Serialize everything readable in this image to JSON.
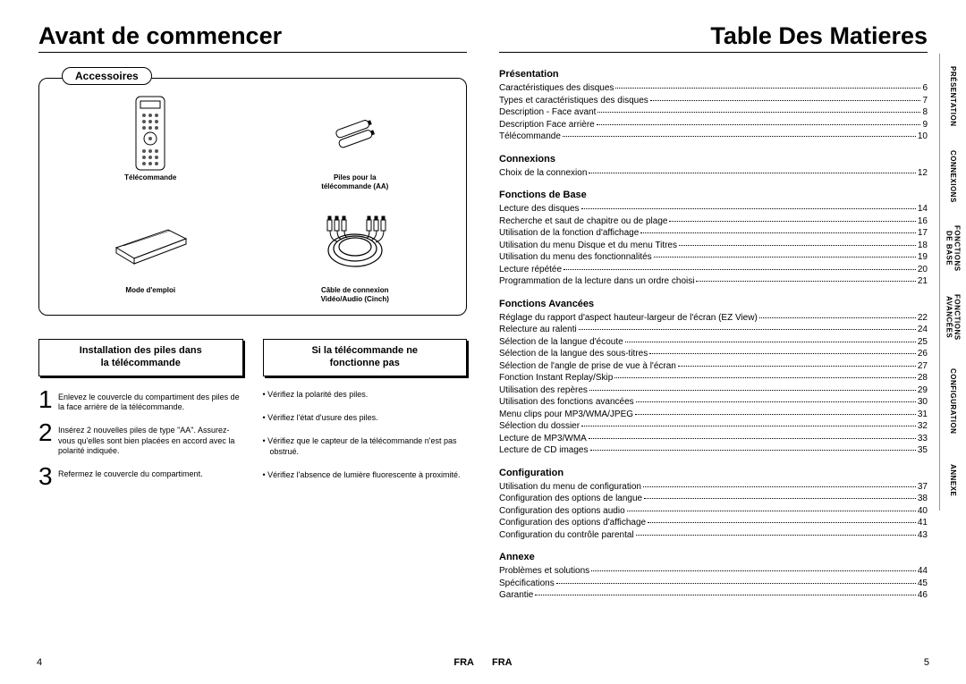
{
  "left": {
    "title": "Avant de commencer",
    "accessories_label": "Accessoires",
    "accessories": [
      {
        "caption": "Télécommande"
      },
      {
        "caption": "Piles pour la\ntélécommande (AA)"
      },
      {
        "caption": "Mode d'emploi"
      },
      {
        "caption": "Câble de connexion\nVidéo/Audio (Cinch)"
      }
    ],
    "inst1_title": "Installation des piles dans\nla télécommande",
    "inst2_title": "Si la télécommande ne\nfonctionne pas",
    "steps": [
      "Enlevez le couvercle du compartiment des piles de la face arrière de la télécommande.",
      "Insérez 2 nouvelles piles de type \"AA\". Assurez-vous qu'elles sont bien placées en accord avec la polarité indiquée.",
      "Refermez le couvercle du compartiment."
    ],
    "bullets": [
      "Vérifiez la polarité des piles.",
      "Vérifiez l'état d'usure des piles.",
      "Vérifiez que le capteur de la télécommande n'est pas obstrué.",
      "Vérifiez l'absence de lumière fluorescente à proximité."
    ],
    "page_num": "4",
    "lang": "FRA"
  },
  "right": {
    "title": "Table Des Matieres",
    "sections": [
      {
        "head": "Présentation",
        "items": [
          {
            "label": "Caractéristiques des disques",
            "page": "6"
          },
          {
            "label": "Types et caractéristiques des disques",
            "page": "7"
          },
          {
            "label": "Description - Face avant",
            "page": "8"
          },
          {
            "label": "Description Face arrière",
            "page": "9"
          },
          {
            "label": "Télécommande",
            "page": "10"
          }
        ]
      },
      {
        "head": "Connexions",
        "items": [
          {
            "label": "Choix de la connexion",
            "page": "12"
          }
        ]
      },
      {
        "head": "Fonctions de Base",
        "items": [
          {
            "label": "Lecture des disques",
            "page": "14"
          },
          {
            "label": "Recherche et saut de chapitre ou de plage",
            "page": "16"
          },
          {
            "label": "Utilisation de la fonction d'affichage",
            "page": "17"
          },
          {
            "label": "Utilisation du menu Disque et du menu Titres",
            "page": "18"
          },
          {
            "label": "Utilisation du menu des fonctionnalités",
            "page": "19"
          },
          {
            "label": "Lecture répétée",
            "page": "20"
          },
          {
            "label": "Programmation de la lecture dans un ordre choisi",
            "page": "21"
          }
        ]
      },
      {
        "head": "Fonctions Avancées",
        "items": [
          {
            "label": "Réglage du rapport d'aspect hauteur-largeur de l'écran (EZ View)",
            "page": "22"
          },
          {
            "label": "Relecture au ralenti",
            "page": "24"
          },
          {
            "label": "Sélection de la langue d'écoute",
            "page": "25"
          },
          {
            "label": "Sélection de la langue des sous-titres",
            "page": "26"
          },
          {
            "label": "Sélection de l'angle de prise de vue à l'écran",
            "page": "27"
          },
          {
            "label": "Fonction Instant Replay/Skip",
            "page": "28"
          },
          {
            "label": "Utilisation des repères",
            "page": "29"
          },
          {
            "label": "Utilisation des fonctions avancées",
            "page": "30"
          },
          {
            "label": "Menu clips pour MP3/WMA/JPEG",
            "page": "31"
          },
          {
            "label": "Sélection du dossier",
            "page": "32"
          },
          {
            "label": "Lecture de MP3/WMA",
            "page": "33"
          },
          {
            "label": "Lecture de CD images",
            "page": "35"
          }
        ]
      },
      {
        "head": "Configuration",
        "items": [
          {
            "label": "Utilisation du menu de configuration",
            "page": "37"
          },
          {
            "label": "Configuration des options de langue",
            "page": "38"
          },
          {
            "label": "Configuration des options audio",
            "page": "40"
          },
          {
            "label": "Configuration des options d'affichage",
            "page": "41"
          },
          {
            "label": "Configuration du contrôle parental",
            "page": "43"
          }
        ]
      },
      {
        "head": "Annexe",
        "items": [
          {
            "label": "Problèmes et solutions",
            "page": "44"
          },
          {
            "label": "Spécifications",
            "page": "45"
          },
          {
            "label": "Garantie",
            "page": "46"
          }
        ]
      }
    ],
    "tabs": [
      "PRÉSENTATION",
      "CONNEXIONS",
      "FONCTIONS\nDE BASE",
      "FONCTIONS\nAVANCÉES",
      "CONFIGURATION",
      "ANNEXE"
    ],
    "tab_heights": [
      95,
      85,
      75,
      80,
      108,
      68
    ],
    "page_num": "5",
    "lang": "FRA"
  },
  "colors": {
    "text": "#000000",
    "bg": "#ffffff",
    "tab_border": "#999999"
  }
}
